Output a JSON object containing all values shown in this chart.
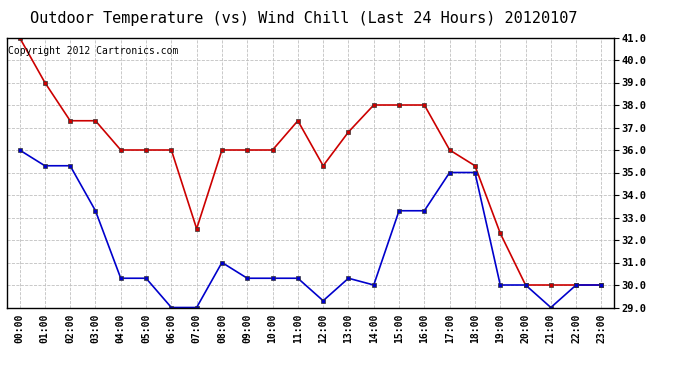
{
  "title": "Outdoor Temperature (vs) Wind Chill (Last 24 Hours) 20120107",
  "copyright_text": "Copyright 2012 Cartronics.com",
  "hours": [
    "00:00",
    "01:00",
    "02:00",
    "03:00",
    "04:00",
    "05:00",
    "06:00",
    "07:00",
    "08:00",
    "09:00",
    "10:00",
    "11:00",
    "12:00",
    "13:00",
    "14:00",
    "15:00",
    "16:00",
    "17:00",
    "18:00",
    "19:00",
    "20:00",
    "21:00",
    "22:00",
    "23:00"
  ],
  "red_temp": [
    41.0,
    39.0,
    37.3,
    37.3,
    36.0,
    36.0,
    36.0,
    32.5,
    36.0,
    36.0,
    36.0,
    37.3,
    35.3,
    36.8,
    38.0,
    38.0,
    38.0,
    36.0,
    35.3,
    32.3,
    30.0,
    30.0,
    30.0,
    30.0
  ],
  "blue_wc": [
    36.0,
    35.3,
    35.3,
    33.3,
    30.3,
    30.3,
    29.0,
    29.0,
    31.0,
    30.3,
    30.3,
    30.3,
    29.3,
    30.3,
    30.0,
    33.3,
    33.3,
    35.0,
    35.0,
    30.0,
    30.0,
    29.0,
    30.0,
    30.0
  ],
  "red_color": "#cc0000",
  "blue_color": "#0000cc",
  "bg_color": "#ffffff",
  "plot_bg_color": "#ffffff",
  "grid_color": "#c0c0c0",
  "ylim": [
    29.0,
    41.0
  ],
  "yticks": [
    29.0,
    30.0,
    31.0,
    32.0,
    33.0,
    34.0,
    35.0,
    36.0,
    37.0,
    38.0,
    39.0,
    40.0,
    41.0
  ],
  "title_fontsize": 11,
  "copyright_fontsize": 7,
  "tick_fontsize": 7,
  "ytick_fontsize": 7.5
}
